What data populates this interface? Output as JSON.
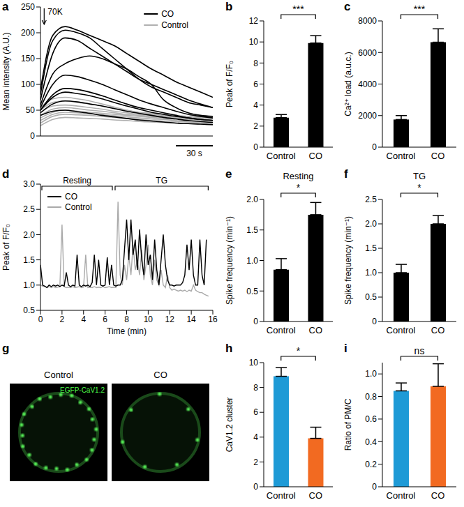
{
  "chart_data": [
    {
      "panel": "a",
      "type": "line",
      "ylabel": "Mean intensity (A.U.)",
      "xlim": [
        0,
        140
      ],
      "ylim": [
        0,
        250
      ],
      "yticks": [
        0,
        50,
        100,
        150,
        200,
        250
      ],
      "tick_labels": "y",
      "x": [
        0,
        10,
        20,
        30,
        40,
        50,
        60,
        70,
        80,
        90,
        100,
        110,
        120,
        130,
        140
      ],
      "stimulus": {
        "label": "70K",
        "x": 3
      },
      "scale_bar": {
        "label": "30 s",
        "value": 30
      },
      "series": [
        {
          "name": "CO",
          "color": "#000000",
          "traces": [
            [
              90,
              195,
              212,
              205,
              195,
              185,
              175,
              160,
              145,
              130,
              118,
              105,
              95,
              85,
              75
            ],
            [
              80,
              185,
              205,
              200,
              190,
              170,
              150,
              130,
              110,
              95,
              85,
              75,
              65,
              60,
              55
            ],
            [
              70,
              160,
              190,
              185,
              170,
              155,
              140,
              125,
              110,
              100,
              90,
              80,
              70,
              62,
              55
            ],
            [
              60,
              120,
              140,
              150,
              155,
              150,
              140,
              130,
              115,
              100,
              70,
              55,
              45,
              40,
              38
            ],
            [
              55,
              100,
              118,
              115,
              108,
              100,
              90,
              80,
              70,
              62,
              55,
              48,
              42,
              38,
              35
            ],
            [
              50,
              80,
              92,
              90,
              85,
              78,
              70,
              62,
              55,
              50,
              45,
              40,
              35,
              32,
              30
            ],
            [
              50,
              75,
              85,
              82,
              78,
              72,
              65,
              58,
              52,
              46,
              42,
              38,
              35,
              32,
              30
            ],
            [
              45,
              62,
              68,
              66,
              62,
              58,
              53,
              48,
              44,
              40,
              36,
              33,
              30,
              28,
              26
            ],
            [
              40,
              48,
              50,
              47,
              44,
              40,
              37,
              34,
              31,
              29,
              27,
              25,
              24,
              23,
              22
            ]
          ]
        },
        {
          "name": "Control",
          "color": "#b0b0b0",
          "traces": [
            [
              55,
              72,
              75,
              72,
              68,
              62,
              56,
              50,
              45,
              42,
              40,
              38,
              36,
              35,
              34
            ],
            [
              50,
              65,
              68,
              65,
              62,
              58,
              54,
              50,
              46,
              44,
              42,
              40,
              38,
              37,
              36
            ],
            [
              45,
              58,
              60,
              58,
              55,
              52,
              48,
              45,
              42,
              40,
              38,
              37,
              36,
              35,
              34
            ],
            [
              40,
              52,
              55,
              53,
              50,
              48,
              45,
              42,
              40,
              38,
              36,
              35,
              33,
              32,
              31
            ],
            [
              35,
              46,
              50,
              48,
              46,
              44,
              42,
              40,
              38,
              36,
              34,
              33,
              32,
              31,
              30
            ],
            [
              30,
              42,
              46,
              45,
              43,
              41,
              39,
              37,
              35,
              33,
              32,
              30,
              29,
              28,
              27
            ],
            [
              25,
              38,
              42,
              41,
              40,
              38,
              36,
              34,
              32,
              30,
              29,
              28,
              27,
              26,
              25
            ],
            [
              20,
              32,
              36,
              35,
              34,
              33,
              31,
              30,
              28,
              27,
              26,
              25,
              24,
              23,
              22
            ]
          ]
        }
      ]
    },
    {
      "panel": "b",
      "type": "bar",
      "ylabel": "Peak of F/F₀",
      "categories": [
        "Control",
        "CO"
      ],
      "values": [
        2.8,
        9.9
      ],
      "errors": [
        0.3,
        0.7
      ],
      "color": "#000000",
      "ylim": [
        0,
        12
      ],
      "yticks": [
        0,
        2,
        4,
        6,
        8,
        10,
        12
      ],
      "significance": "***"
    },
    {
      "panel": "c",
      "type": "bar",
      "ylabel": "Ca²⁺ load (a.u.c.)",
      "categories": [
        "Control",
        "CO"
      ],
      "values": [
        1750,
        6650
      ],
      "errors": [
        250,
        850
      ],
      "color": "#000000",
      "ylim": [
        0,
        8000
      ],
      "yticks": [
        0,
        2000,
        4000,
        6000,
        8000
      ],
      "significance": "***"
    },
    {
      "panel": "d",
      "type": "line",
      "ylabel": "Peak of F/F₀",
      "xlabel": "Time (min)",
      "xlim": [
        0,
        16
      ],
      "xticks": [
        0,
        2,
        4,
        6,
        8,
        10,
        12,
        14,
        16
      ],
      "ylim": [
        0.5,
        3.0
      ],
      "yticks": [
        0.5,
        {
          "value": 1,
          "label": "1.0"
        },
        1.5,
        {
          "value": 2,
          "label": "2.0"
        },
        2.5,
        {
          "value": 3,
          "label": "3.0"
        }
      ],
      "periods": [
        {
          "label": "Resting",
          "start": 0,
          "end": 6.8
        },
        {
          "label": "TG",
          "start": 6.8,
          "end": 15.7
        }
      ],
      "x": [
        0,
        0.2,
        0.4,
        0.6,
        0.8,
        1,
        1.2,
        1.4,
        1.6,
        1.8,
        2,
        2.2,
        2.4,
        2.6,
        2.8,
        3,
        3.2,
        3.4,
        3.6,
        3.8,
        4,
        4.2,
        4.4,
        4.6,
        4.8,
        5,
        5.2,
        5.4,
        5.6,
        5.8,
        6,
        6.2,
        6.4,
        6.6,
        6.8,
        7,
        7.2,
        7.4,
        7.6,
        7.8,
        8,
        8.2,
        8.4,
        8.6,
        8.8,
        9,
        9.2,
        9.4,
        9.6,
        9.8,
        10,
        10.2,
        10.4,
        10.6,
        10.8,
        11,
        11.2,
        11.4,
        11.6,
        11.8,
        12,
        12.2,
        12.4,
        12.6,
        12.8,
        13,
        13.2,
        13.4,
        13.6,
        13.8,
        14,
        14.2,
        14.4,
        14.6,
        14.8,
        15,
        15.2,
        15.4,
        15.6
      ],
      "series": [
        {
          "name": "CO",
          "color": "#000000",
          "values": [
            1.4,
            1.0,
            0.98,
            0.95,
            1.0,
            0.97,
            1.0,
            0.98,
            1.0,
            0.97,
            1.0,
            0.98,
            1.25,
            1.0,
            0.97,
            1.0,
            0.98,
            1.6,
            1.0,
            0.97,
            1.0,
            0.98,
            1.0,
            0.97,
            1.05,
            1.6,
            1.0,
            1.5,
            1.0,
            0.98,
            1.0,
            1.55,
            1.0,
            1.4,
            1.0,
            0.98,
            1.0,
            1.0,
            1.1,
            1.7,
            2.3,
            1.5,
            2.3,
            1.6,
            1.9,
            1.3,
            2.1,
            1.5,
            1.2,
            2.0,
            1.4,
            1.6,
            1.1,
            1.9,
            1.3,
            1.0,
            1.5,
            2.0,
            1.4,
            1.1,
            1.0,
            1.0,
            0.98,
            1.0,
            1.0,
            1.0,
            1.05,
            1.2,
            1.8,
            1.3,
            1.9,
            1.2,
            1.0,
            1.0,
            1.9,
            1.2,
            1.0,
            1.9,
            null
          ]
        },
        {
          "name": "Control",
          "color": "#aaaaaa",
          "values": [
            1.0,
            0.98,
            0.97,
            0.95,
            0.97,
            0.95,
            0.97,
            0.95,
            0.96,
            0.97,
            2.2,
            0.97,
            0.95,
            0.96,
            0.95,
            0.97,
            0.95,
            0.96,
            0.97,
            0.95,
            0.96,
            1.6,
            0.95,
            0.96,
            0.95,
            0.97,
            0.95,
            0.96,
            0.95,
            0.97,
            0.95,
            0.96,
            0.97,
            0.95,
            0.96,
            0.95,
            2.65,
            1.2,
            1.0,
            1.4,
            1.1,
            1.6,
            1.2,
            1.8,
            1.3,
            1.5,
            1.2,
            1.7,
            1.1,
            1.4,
            1.8,
            1.2,
            1.0,
            1.5,
            1.1,
            1.0,
            1.3,
            1.0,
            0.95,
            1.2,
            0.95,
            0.9,
            0.92,
            0.9,
            0.88,
            0.9,
            0.88,
            0.9,
            0.87,
            0.9,
            0.88,
            1.0,
            0.9,
            0.87,
            0.85,
            0.85,
            0.82,
            0.8,
            0.78
          ]
        }
      ]
    },
    {
      "panel": "e",
      "type": "bar",
      "title": "Resting",
      "ylabel": "Spike frequency (min⁻¹)",
      "categories": [
        "Control",
        "CO"
      ],
      "values": [
        0.85,
        1.75
      ],
      "errors": [
        0.18,
        0.2
      ],
      "color": "#000000",
      "ylim": [
        0,
        2
      ],
      "yticks": [
        0,
        0.5,
        {
          "value": 1,
          "label": "1.0"
        },
        1.5,
        {
          "value": 2,
          "label": "2.0"
        }
      ],
      "significance": "*"
    },
    {
      "panel": "f",
      "type": "bar",
      "title": "TG",
      "ylabel": "Spike frequency (min⁻¹)",
      "categories": [
        "Control",
        "CO"
      ],
      "values": [
        1.0,
        2.0
      ],
      "errors": [
        0.17,
        0.17
      ],
      "color": "#000000",
      "ylim": [
        0,
        2.5
      ],
      "yticks": [
        0,
        0.5,
        {
          "value": 1,
          "label": "1.0"
        },
        1.5,
        {
          "value": 2,
          "label": "2.0"
        },
        2.5
      ],
      "significance": "*"
    },
    {
      "panel": "g",
      "type": "image",
      "labels": [
        "Control",
        "CO"
      ],
      "channel_label": "EGFP-CaV1.2"
    },
    {
      "panel": "h",
      "type": "bar",
      "ylabel": "CaV1.2 cluster",
      "categories": [
        "Control",
        "CO"
      ],
      "values": [
        8.9,
        3.9
      ],
      "errors": [
        0.7,
        0.9
      ],
      "colors": [
        "#1e9ad6",
        "#f26a21"
      ],
      "ylim": [
        0,
        10
      ],
      "yticks": [
        0,
        2,
        4,
        6,
        8,
        10
      ],
      "significance": "*"
    },
    {
      "panel": "i",
      "type": "bar",
      "ylabel": "Ratio of PM/C",
      "categories": [
        "Control",
        "CO"
      ],
      "values": [
        0.85,
        0.89
      ],
      "errors": [
        0.07,
        0.2
      ],
      "colors": [
        "#1e9ad6",
        "#f26a21"
      ],
      "ylim": [
        0,
        1.1
      ],
      "yticks": [
        0,
        0.2,
        0.4,
        0.6,
        0.8,
        {
          "value": 1,
          "label": "1.0"
        }
      ],
      "significance": "ns"
    }
  ]
}
